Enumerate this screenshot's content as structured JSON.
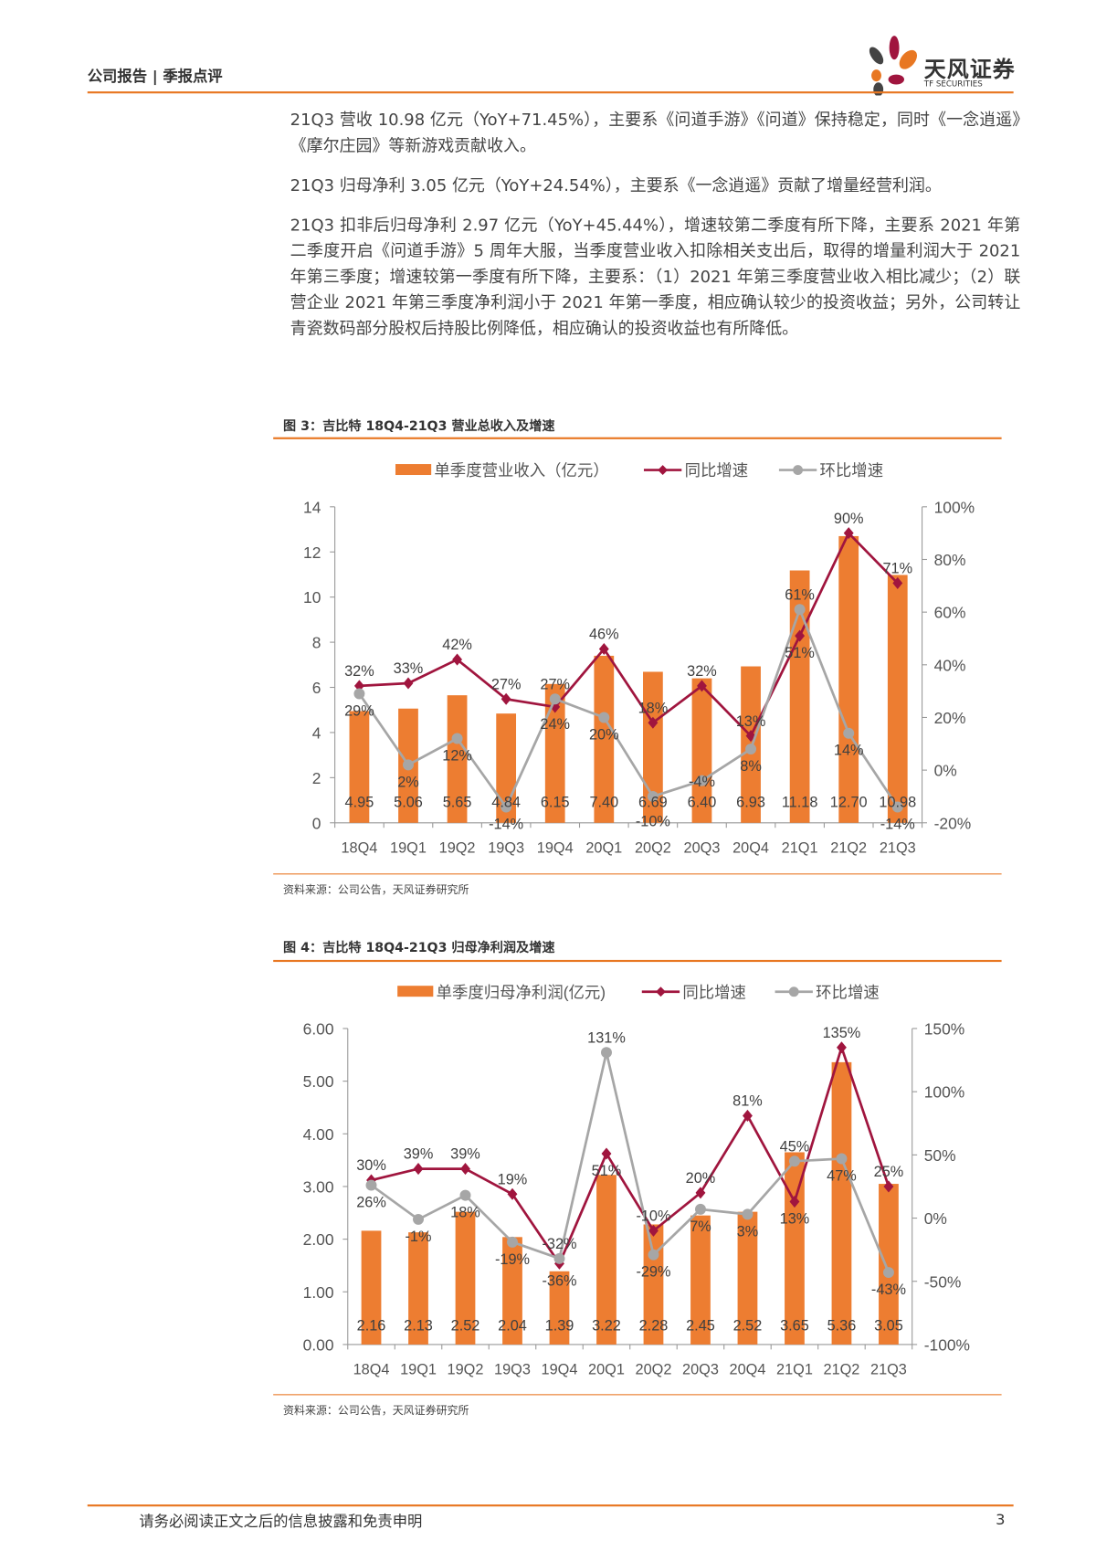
{
  "header": {
    "section": "公司报告 | 季报点评",
    "logo_cn": "天风证券",
    "logo_en": "TF SECURITIES"
  },
  "paragraphs": [
    "21Q3 营收 10.98 亿元（YoY+71.45%），主要系《问道手游》《问道》保持稳定，同时《一念逍遥》《摩尔庄园》等新游戏贡献收入。",
    "21Q3 归母净利 3.05 亿元（YoY+24.54%），主要系《一念逍遥》贡献了增量经营利润。",
    "21Q3 扣非后归母净利 2.97 亿元（YoY+45.44%），增速较第二季度有所下降，主要系 2021 年第二季度开启《问道手游》5 周年大服，当季度营业收入扣除相关支出后，取得的增量利润大于 2021 年第三季度；增速较第一季度有所下降，主要系：（1）2021 年第三季度营业收入相比减少；（2）联营企业 2021 年第三季度净利润小于 2021 年第一季度，相应确认较少的投资收益；另外，公司转让青瓷数码部分股权后持股比例降低，相应确认的投资收益也有所降低。"
  ],
  "colors": {
    "accent": "#E87722",
    "bar": "#ED7D31",
    "yoy": "#A0153E",
    "qoq": "#A6A6A6"
  },
  "chart_data": [
    {
      "type": "bar",
      "title": "图 3：吉比特 18Q4-21Q3 营业总收入及增速",
      "source": "资料来源：公司公告，天风证券研究所",
      "categories": [
        "18Q4",
        "19Q1",
        "19Q2",
        "19Q3",
        "19Q4",
        "20Q1",
        "20Q2",
        "20Q3",
        "20Q4",
        "21Q1",
        "21Q2",
        "21Q3"
      ],
      "series": [
        {
          "name": "单季度营业收入（亿元）",
          "type": "bar",
          "axis": "left",
          "values": [
            4.95,
            5.06,
            5.65,
            4.84,
            6.15,
            7.4,
            6.69,
            6.4,
            6.93,
            11.18,
            12.7,
            10.98
          ],
          "labels": [
            "4.95",
            "5.06",
            "5.65",
            "4.84",
            "6.15",
            "7.40",
            "6.69",
            "6.40",
            "6.93",
            "11.18",
            "12.70",
            "10.98"
          ]
        },
        {
          "name": "同比增速",
          "type": "line",
          "axis": "right",
          "values": [
            32,
            33,
            42,
            27,
            24,
            46,
            18,
            32,
            13,
            51,
            90,
            71
          ]
        },
        {
          "name": "环比增速",
          "type": "line",
          "axis": "right",
          "values": [
            29,
            2,
            12,
            -14,
            27,
            20,
            -10,
            -4,
            8,
            61,
            14,
            -14
          ]
        }
      ],
      "ylim": [
        0,
        14
      ],
      "yticks": [
        "0",
        "2",
        "4",
        "6",
        "8",
        "10",
        "12",
        "14"
      ],
      "y2lim": [
        -20,
        100
      ],
      "y2ticks": [
        "-20%",
        "0%",
        "20%",
        "40%",
        "60%",
        "80%",
        "100%"
      ],
      "legend": "top"
    },
    {
      "type": "bar",
      "title": "图 4：吉比特 18Q4-21Q3 归母净利润及增速",
      "source": "资料来源：公司公告，天风证券研究所",
      "categories": [
        "18Q4",
        "19Q1",
        "19Q2",
        "19Q3",
        "19Q4",
        "20Q1",
        "20Q2",
        "20Q3",
        "20Q4",
        "21Q1",
        "21Q2",
        "21Q3"
      ],
      "series": [
        {
          "name": "单季度归母净利润(亿元)",
          "type": "bar",
          "axis": "left",
          "values": [
            2.16,
            2.13,
            2.52,
            2.04,
            1.39,
            3.22,
            2.28,
            2.45,
            2.52,
            3.65,
            5.36,
            3.05
          ],
          "labels": [
            "2.16",
            "2.13",
            "2.52",
            "2.04",
            "1.39",
            "3.22",
            "2.28",
            "2.45",
            "2.52",
            "3.65",
            "5.36",
            "3.05"
          ]
        },
        {
          "name": "同比增速",
          "type": "line",
          "axis": "right",
          "values": [
            30,
            39,
            39,
            19,
            -36,
            51,
            -10,
            20,
            81,
            13,
            135,
            25
          ]
        },
        {
          "name": "环比增速",
          "type": "line",
          "axis": "right",
          "values": [
            26,
            -1,
            18,
            -19,
            -32,
            131,
            -29,
            7,
            3,
            45,
            47,
            -43
          ]
        }
      ],
      "ylim": [
        0,
        6
      ],
      "yticks": [
        "0.00",
        "1.00",
        "2.00",
        "3.00",
        "4.00",
        "5.00",
        "6.00"
      ],
      "y2lim": [
        -100,
        150
      ],
      "y2ticks": [
        "-100%",
        "-50%",
        "0%",
        "50%",
        "100%",
        "150%"
      ],
      "legend": "top"
    }
  ],
  "footer": {
    "disclaimer": "请务必阅读正文之后的信息披露和免责申明",
    "page": "3"
  }
}
